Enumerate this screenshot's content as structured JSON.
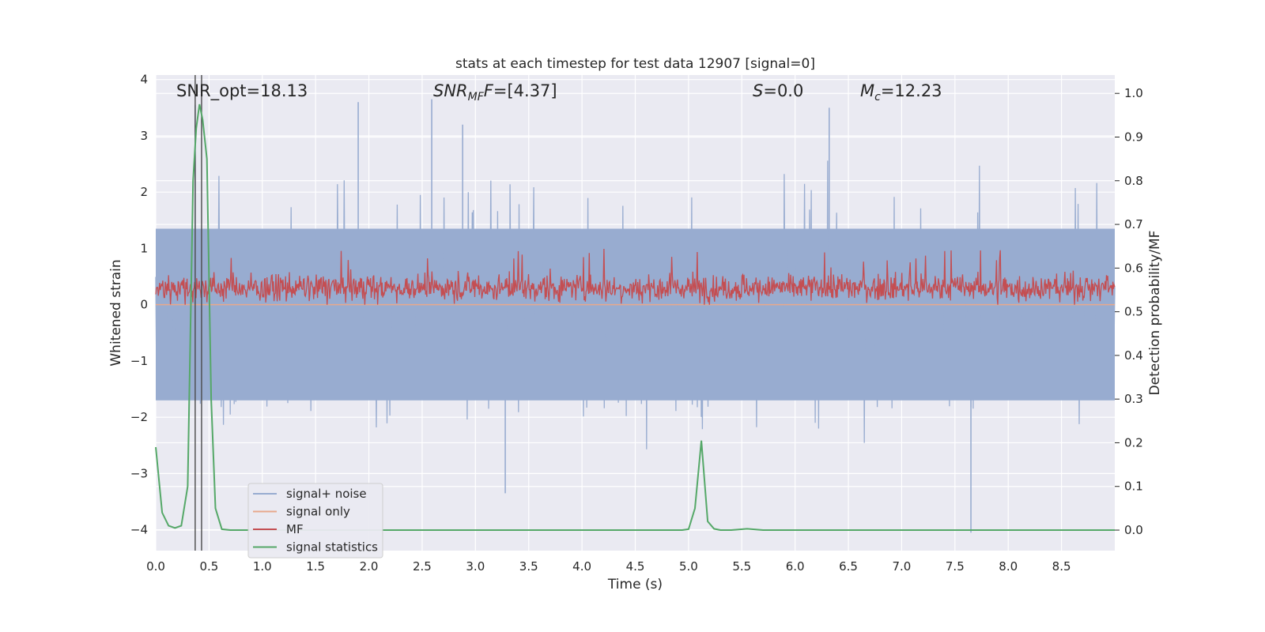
{
  "chart_data": {
    "type": "line",
    "title": "stats at each timestep for test data 12907 [signal=0]",
    "xlabel": "Time (s)",
    "ylabel": "Whitened strain",
    "y2label": "Detection probability/MF",
    "xlim": [
      0.0,
      9.0
    ],
    "ylim": [
      -4.37,
      4.08
    ],
    "y2lim": [
      -0.047,
      1.042
    ],
    "xticks": [
      "0.0",
      "0.5",
      "1.0",
      "1.5",
      "2.0",
      "2.5",
      "3.0",
      "3.5",
      "4.0",
      "4.5",
      "5.0",
      "5.5",
      "6.0",
      "6.5",
      "7.0",
      "7.5",
      "8.0",
      "8.5"
    ],
    "yticks": [
      -4,
      -3,
      -2,
      -1,
      0,
      1,
      2,
      3,
      4
    ],
    "y2ticks": [
      "0.0",
      "0.1",
      "0.2",
      "0.3",
      "0.4",
      "0.5",
      "0.6",
      "0.7",
      "0.8",
      "0.9",
      "1.0"
    ],
    "grid": true,
    "legend_position": "lower-left",
    "annotations": {
      "snr_opt": "SNR_opt=18.13",
      "snr_mf_prefix": "SNR",
      "snr_mf_sub": "MF",
      "snr_mf_rest": "=[4.37]",
      "stat_prefix": "S",
      "stat_rest": "=0.0",
      "mc_prefix": "M",
      "mc_sub": "c",
      "mc_rest": "=12.23"
    },
    "vlines_x": [
      0.37,
      0.43
    ],
    "series": [
      {
        "name": "signal+ noise",
        "color": "#98acd0",
        "axis": "left",
        "style": "dense-noise",
        "core_band": [
          -1.7,
          1.35
        ],
        "tail_range": [
          -3.3,
          3.65
        ],
        "outliers": [
          {
            "x": 0.37,
            "y": 3.55
          },
          {
            "x": 1.9,
            "y": 3.6
          },
          {
            "x": 2.59,
            "y": 3.65
          },
          {
            "x": 2.88,
            "y": 3.2
          },
          {
            "x": 3.28,
            "y": -3.35
          },
          {
            "x": 6.32,
            "y": 3.5
          },
          {
            "x": 7.65,
            "y": -4.05
          }
        ]
      },
      {
        "name": "signal only",
        "color": "#e8a88c",
        "axis": "left",
        "x": [
          0.0,
          9.0
        ],
        "y": [
          0.0,
          0.0
        ]
      },
      {
        "name": "MF",
        "color": "#c44e52",
        "axis": "left",
        "style": "dense-noise",
        "band": [
          0.0,
          0.65
        ],
        "peak": 1.0
      },
      {
        "name": "signal statistics",
        "color": "#55a868",
        "axis": "right",
        "x": [
          0.0,
          0.06,
          0.12,
          0.18,
          0.24,
          0.3,
          0.35,
          0.38,
          0.41,
          0.44,
          0.48,
          0.52,
          0.56,
          0.62,
          0.7,
          0.8,
          0.9,
          1.5,
          2.5,
          3.5,
          4.5,
          4.88,
          4.94,
          5.0,
          5.06,
          5.12,
          5.18,
          5.24,
          5.3,
          5.4,
          5.55,
          5.7,
          6.0,
          7.0,
          8.0,
          9.0
        ],
        "y": [
          0.19,
          0.04,
          0.01,
          0.005,
          0.01,
          0.1,
          0.8,
          0.92,
          0.975,
          0.94,
          0.85,
          0.3,
          0.05,
          0.002,
          0.0,
          0.0,
          0.0,
          0.0,
          0.0,
          0.0,
          0.0,
          0.0,
          0.0,
          0.002,
          0.05,
          0.205,
          0.02,
          0.003,
          0.0,
          0.0,
          0.003,
          0.0,
          0.0,
          0.0,
          0.0,
          0.0
        ]
      }
    ]
  }
}
